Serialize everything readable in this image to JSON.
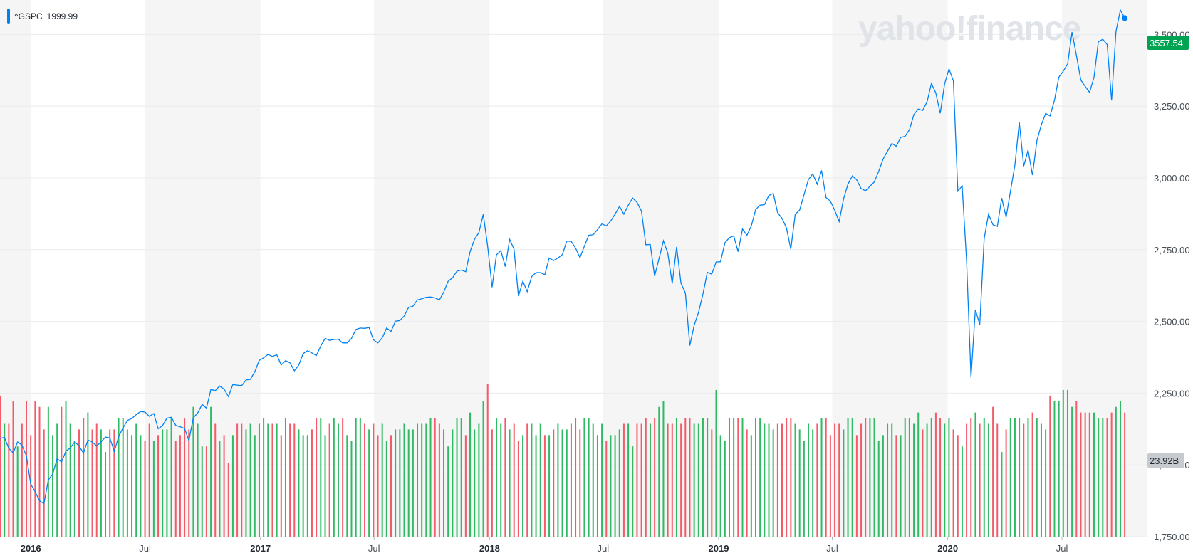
{
  "chart_data": {
    "type": "line",
    "symbol": "^GSPC",
    "legend_value": "1999.99",
    "watermark": "yahoo!finance",
    "last_price_label": "3557.54",
    "last_price_color": "#00a352",
    "last_volume_label": "23.92B",
    "line_color": "#0081f2",
    "volume_up_color": "#2fba63",
    "volume_down_color": "#f45b69",
    "y_ticks": [
      "3,500.00",
      "3,250.00",
      "3,000.00",
      "2,750.00",
      "2,500.00",
      "2,250.00",
      "2,000.00",
      "1,750.00"
    ],
    "ylim": [
      1750,
      3620
    ],
    "x_ticks": [
      {
        "label": "2016",
        "date": "2016-01-01",
        "major": true
      },
      {
        "label": "Jul",
        "date": "2016-07-01",
        "major": false
      },
      {
        "label": "2017",
        "date": "2017-01-01",
        "major": true
      },
      {
        "label": "Jul",
        "date": "2017-07-01",
        "major": false
      },
      {
        "label": "2018",
        "date": "2018-01-01",
        "major": true
      },
      {
        "label": "Jul",
        "date": "2018-07-01",
        "major": false
      },
      {
        "label": "2019",
        "date": "2019-01-01",
        "major": true
      },
      {
        "label": "Jul",
        "date": "2019-07-01",
        "major": false
      },
      {
        "label": "2020",
        "date": "2020-01-01",
        "major": true
      },
      {
        "label": "Jul",
        "date": "2020-07-01",
        "major": false
      }
    ],
    "x_start": "2015-11-13",
    "x_end": "2020-11-13",
    "y_start_index_date": "2015-11-13",
    "close": [
      2092,
      2096,
      2058,
      2042,
      2080,
      2069,
      2032,
      1933,
      1907,
      1875,
      1865,
      1948,
      1968,
      2022,
      2010,
      2048,
      2059,
      2080,
      2066,
      2041,
      2087,
      2080,
      2066,
      2080,
      2097,
      2094,
      2047,
      2099,
      2129,
      2155,
      2162,
      2175,
      2186,
      2184,
      2169,
      2179,
      2126,
      2137,
      2163,
      2166,
      2138,
      2133,
      2127,
      2085,
      2164,
      2181,
      2211,
      2198,
      2263,
      2259,
      2275,
      2264,
      2238,
      2280,
      2278,
      2276,
      2296,
      2298,
      2325,
      2364,
      2373,
      2385,
      2378,
      2384,
      2348,
      2363,
      2356,
      2328,
      2348,
      2388,
      2398,
      2390,
      2381,
      2414,
      2441,
      2434,
      2437,
      2438,
      2425,
      2425,
      2441,
      2472,
      2477,
      2476,
      2479,
      2436,
      2425,
      2443,
      2477,
      2465,
      2501,
      2503,
      2519,
      2549,
      2553,
      2575,
      2579,
      2584,
      2585,
      2582,
      2575,
      2602,
      2640,
      2652,
      2675,
      2679,
      2673,
      2743,
      2786,
      2810,
      2873,
      2762,
      2619,
      2732,
      2747,
      2691,
      2786,
      2752,
      2588,
      2640,
      2604,
      2656,
      2670,
      2670,
      2663,
      2721,
      2712,
      2721,
      2733,
      2780,
      2779,
      2756,
      2722,
      2762,
      2800,
      2802,
      2820,
      2840,
      2833,
      2850,
      2874,
      2901,
      2874,
      2905,
      2930,
      2915,
      2885,
      2767,
      2768,
      2658,
      2719,
      2781,
      2738,
      2632,
      2760,
      2633,
      2599,
      2416,
      2486,
      2532,
      2596,
      2671,
      2665,
      2707,
      2708,
      2774,
      2792,
      2798,
      2743,
      2822,
      2800,
      2832,
      2890,
      2905,
      2907,
      2939,
      2946,
      2879,
      2859,
      2826,
      2752,
      2873,
      2888,
      2942,
      2994,
      3014,
      2978,
      3026,
      2932,
      2919,
      2887,
      2848,
      2927,
      2978,
      3007,
      2993,
      2963,
      2955,
      2971,
      2986,
      3023,
      3066,
      3093,
      3120,
      3110,
      3141,
      3145,
      3168,
      3221,
      3240,
      3235,
      3265,
      3329,
      3296,
      3225,
      3327,
      3380,
      3338,
      2954,
      2972,
      2711,
      2305,
      2541,
      2489,
      2789,
      2874,
      2837,
      2831,
      2930,
      2863,
      2955,
      3044,
      3194,
      3041,
      3097,
      3010,
      3130,
      3185,
      3225,
      3216,
      3271,
      3351,
      3372,
      3397,
      3508,
      3427,
      3341,
      3319,
      3298,
      3351,
      3475,
      3483,
      3465,
      3270,
      3510,
      3585,
      3557
    ],
    "volume_B": [
      14,
      20,
      20,
      24,
      16,
      20,
      24,
      18,
      24,
      23,
      19,
      23,
      18,
      20,
      23,
      24,
      20,
      17,
      19,
      21,
      22,
      19,
      20,
      19,
      15,
      19,
      19,
      21,
      21,
      19,
      18,
      20,
      18,
      17,
      20,
      17,
      18,
      19,
      19,
      21,
      17,
      18,
      21,
      19,
      23,
      20,
      16,
      16,
      23,
      20,
      17,
      18,
      13,
      18,
      20,
      20,
      19,
      20,
      18,
      20,
      21,
      20,
      20,
      20,
      18,
      21,
      20,
      20,
      19,
      18,
      18,
      19,
      21,
      21,
      18,
      20,
      21,
      20,
      21,
      18,
      17,
      21,
      21,
      20,
      19,
      20,
      18,
      20,
      17,
      18,
      19,
      19,
      20,
      19,
      19,
      20,
      20,
      20,
      21,
      21,
      20,
      19,
      16,
      19,
      21,
      21,
      18,
      22,
      19,
      20,
      24,
      27,
      19,
      21,
      20,
      21,
      19,
      20,
      17,
      18,
      20,
      20,
      18,
      20,
      18,
      18,
      19,
      20,
      19,
      19,
      20,
      21,
      19,
      21,
      21,
      20,
      18,
      20,
      17,
      18,
      18,
      19,
      20,
      20,
      16,
      20,
      20,
      21,
      20,
      21,
      23,
      24,
      20,
      20,
      21,
      20,
      21,
      21,
      20,
      20,
      21,
      21,
      19,
      26,
      18,
      17,
      21,
      21,
      21,
      21,
      19,
      18,
      21,
      21,
      20,
      20,
      19,
      20,
      20,
      21,
      21,
      20,
      19,
      17,
      20,
      19,
      20,
      21,
      21,
      18,
      20,
      20,
      19,
      21,
      21,
      18,
      20,
      21,
      21,
      21,
      17,
      18,
      20,
      20,
      18,
      18,
      21,
      21,
      20,
      22,
      19,
      20,
      21,
      22,
      21,
      20,
      21,
      19,
      18,
      16,
      20,
      21,
      22,
      20,
      21,
      20,
      23,
      20,
      15,
      19,
      21,
      21,
      21,
      20,
      21,
      22,
      21,
      20,
      19,
      25,
      24,
      24,
      26,
      26,
      23,
      24,
      22,
      22,
      22,
      22,
      21,
      21,
      21,
      22,
      23,
      24,
      22,
      22,
      20,
      19,
      21,
      21,
      22,
      20,
      21,
      20,
      20,
      20,
      21,
      20,
      20,
      21,
      22,
      20,
      21,
      20,
      20,
      20,
      20,
      22,
      22,
      23,
      25,
      24
    ]
  }
}
